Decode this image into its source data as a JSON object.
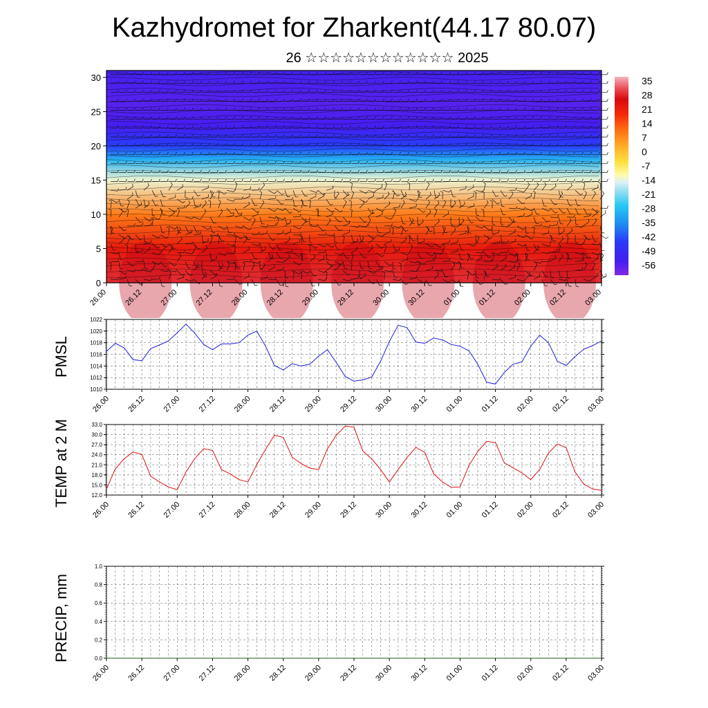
{
  "page": {
    "title": "Kazhydromet for Zharkent(44.17 80.07)",
    "subtitle": "26 ☆☆☆☆☆☆☆☆☆☆☆☆ 2025"
  },
  "chart_data": [
    {
      "type": "heatmap",
      "title": "",
      "xlabel": "",
      "ylabel": "",
      "x_tick_labels": [
        "26.00",
        "26.12",
        "27.00",
        "27.12",
        "28.00",
        "28.12",
        "29.00",
        "29.12",
        "30.00",
        "30.12",
        "01.00",
        "01.12",
        "02.00",
        "02.12",
        "03.00"
      ],
      "y_ticks": [
        0,
        5,
        10,
        15,
        20,
        25,
        30
      ],
      "ylim": [
        0,
        31
      ],
      "colorbar": {
        "labels": [
          "35",
          "28",
          "21",
          "14",
          "7",
          "0",
          "-7",
          "-14",
          "-21",
          "-28",
          "-35",
          "-42",
          "-49",
          "-56"
        ],
        "range": [
          -63,
          42
        ]
      },
      "temperature_profile": [
        {
          "level": 0,
          "value": 33
        },
        {
          "level": 5,
          "value": 26
        },
        {
          "level": 10,
          "value": 12
        },
        {
          "level": 15,
          "value": -12
        },
        {
          "level": 18,
          "value": -30
        },
        {
          "level": 20,
          "value": -45
        },
        {
          "level": 23,
          "value": -56
        },
        {
          "level": 26,
          "value": -58
        },
        {
          "level": 31,
          "value": -55
        }
      ],
      "wind_barbs": true
    },
    {
      "type": "line",
      "ylabel": "PMSL",
      "ylim": [
        1010,
        1022
      ],
      "y_ticks": [
        "1010",
        "1012",
        "1014",
        "1016",
        "1018",
        "1020",
        "1022"
      ],
      "x_tick_labels": [
        "26.00",
        "26.12",
        "27.00",
        "27.12",
        "28.00",
        "28.12",
        "29.00",
        "29.12",
        "30.00",
        "30.12",
        "01.00",
        "01.12",
        "02.00",
        "02.12",
        "03.00"
      ],
      "series": [
        {
          "color": "#1f1fdd",
          "values": [
            1016.5,
            1017.9,
            1017.1,
            1015.1,
            1014.9,
            1017.0,
            1017.6,
            1018.3,
            1019.7,
            1021.2,
            1019.6,
            1017.7,
            1016.8,
            1017.8,
            1017.8,
            1018.0,
            1019.3,
            1020.0,
            1017.4,
            1014.1,
            1013.3,
            1014.4,
            1014.0,
            1014.3,
            1015.7,
            1016.8,
            1014.6,
            1012.2,
            1011.4,
            1011.6,
            1012.1,
            1014.8,
            1018.2,
            1021.0,
            1020.6,
            1018.1,
            1017.9,
            1018.8,
            1018.5,
            1017.7,
            1017.4,
            1016.6,
            1014.3,
            1011.2,
            1010.9,
            1012.9,
            1014.3,
            1014.7,
            1017.4,
            1019.3,
            1018.0,
            1014.8,
            1014.1,
            1015.6,
            1016.9,
            1017.5,
            1018.3
          ]
        }
      ]
    },
    {
      "type": "line",
      "ylabel": "TEMP at 2 M",
      "ylim": [
        12,
        33
      ],
      "y_ticks": [
        "12.0",
        "15.0",
        "18.0",
        "21.0",
        "24.0",
        "27.0",
        "30.0",
        "33.0"
      ],
      "x_tick_labels": [
        "26.00",
        "26.12",
        "27.00",
        "27.12",
        "28.00",
        "28.12",
        "29.00",
        "29.12",
        "30.00",
        "30.12",
        "01.00",
        "01.12",
        "02.00",
        "02.12",
        "03.00"
      ],
      "series": [
        {
          "color": "#dd1111",
          "values": [
            13.8,
            19.8,
            22.8,
            24.8,
            24.1,
            17.6,
            15.9,
            14.4,
            13.6,
            18.9,
            22.9,
            25.8,
            25.3,
            19.6,
            18.3,
            16.6,
            15.9,
            21.1,
            25.6,
            29.8,
            29.2,
            23.3,
            21.4,
            20.0,
            19.6,
            25.8,
            29.8,
            32.5,
            32.2,
            25.1,
            22.8,
            19.6,
            15.9,
            19.6,
            23.2,
            26.2,
            24.7,
            18.4,
            15.9,
            14.3,
            14.4,
            20.8,
            25.0,
            28.0,
            27.6,
            21.6,
            20.1,
            18.6,
            16.6,
            19.6,
            24.5,
            27.2,
            26.1,
            18.9,
            15.3,
            13.8,
            13.4
          ]
        }
      ]
    },
    {
      "type": "line",
      "ylabel": "PRECIP, mm",
      "ylim": [
        0,
        1.0
      ],
      "y_ticks": [
        "0.0",
        "0.2",
        "0.4",
        "0.6",
        "0.8",
        "1.0"
      ],
      "x_tick_labels": [
        "26.00",
        "26.12",
        "27.00",
        "27.12",
        "28.00",
        "28.12",
        "29.00",
        "29.12",
        "30.00",
        "30.12",
        "01.00",
        "01.12",
        "02.00",
        "02.12",
        "03.00"
      ],
      "series": [
        {
          "color": "#1a5c1a",
          "values": [
            0,
            0,
            0,
            0,
            0,
            0,
            0,
            0,
            0,
            0,
            0,
            0,
            0,
            0,
            0,
            0,
            0,
            0,
            0,
            0,
            0,
            0,
            0,
            0,
            0,
            0,
            0,
            0,
            0,
            0,
            0,
            0,
            0,
            0,
            0,
            0,
            0,
            0,
            0,
            0,
            0,
            0,
            0,
            0,
            0,
            0,
            0,
            0,
            0,
            0,
            0,
            0,
            0,
            0,
            0,
            0,
            0
          ]
        }
      ]
    }
  ]
}
